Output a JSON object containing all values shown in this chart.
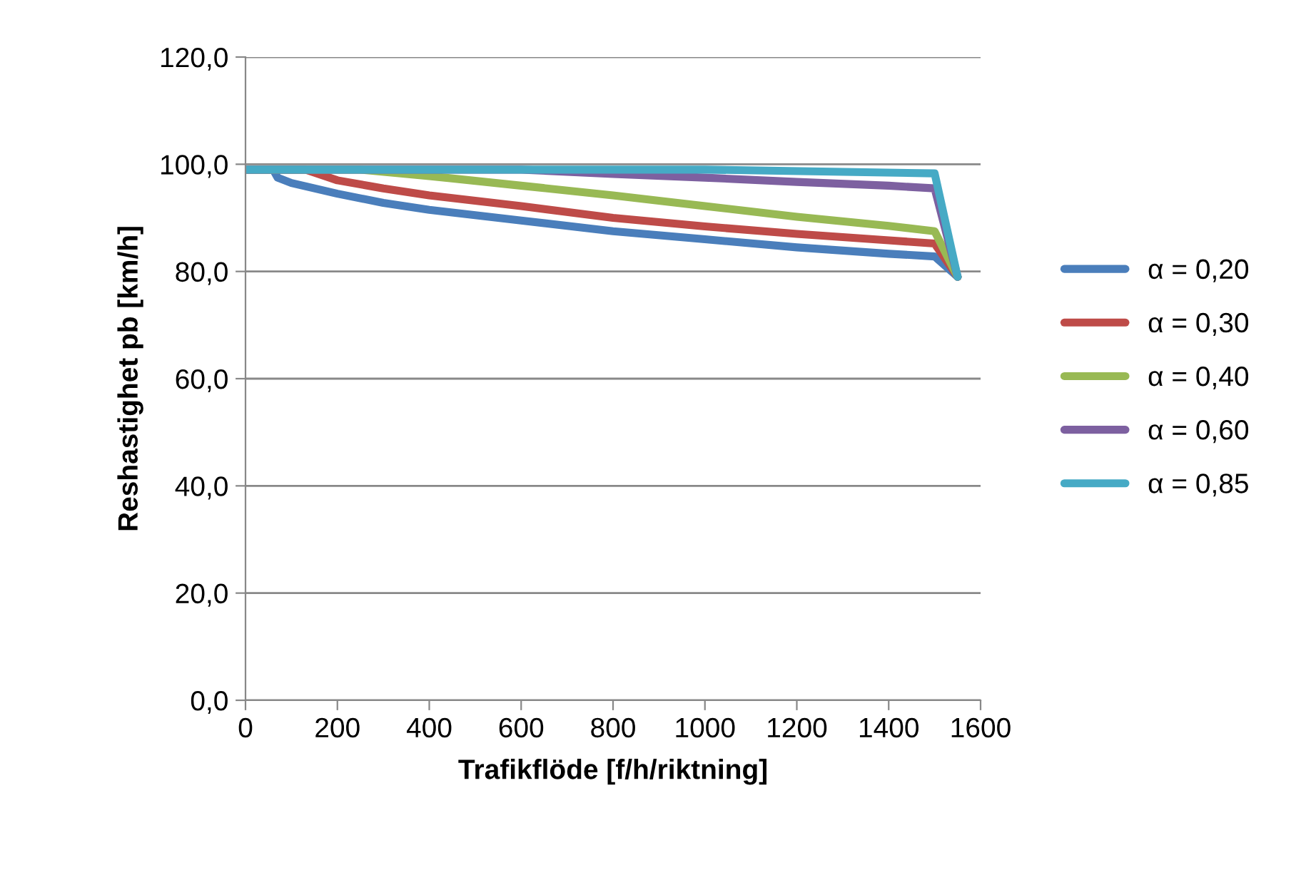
{
  "chart_data": {
    "type": "line",
    "xlabel": "Trafikflöde [f/h/riktning]",
    "ylabel": "Reshastighet pb [km/h]",
    "xlim": [
      0,
      1600
    ],
    "xticks": [
      0,
      200,
      400,
      600,
      800,
      1000,
      1200,
      1400,
      1600
    ],
    "ylim": [
      0,
      120
    ],
    "yticks": [
      {
        "value": 0,
        "label": "0,0"
      },
      {
        "value": 20,
        "label": "20,0"
      },
      {
        "value": 40,
        "label": "40,0"
      },
      {
        "value": 60,
        "label": "60,0"
      },
      {
        "value": 80,
        "label": "80,0"
      },
      {
        "value": 100,
        "label": "100,0"
      },
      {
        "value": 120,
        "label": "120,0"
      }
    ],
    "grid": "y",
    "legend": "right",
    "marker": "none",
    "line_style": "solid",
    "series": [
      {
        "name": "α = 0,20",
        "color": "#4a7ebb",
        "x": [
          0,
          60,
          70,
          100,
          200,
          300,
          400,
          600,
          800,
          1000,
          1200,
          1400,
          1500,
          1550
        ],
        "values": [
          99,
          99,
          97.5,
          96.5,
          94.5,
          92.8,
          91.5,
          89.5,
          87.5,
          86,
          84.5,
          83.3,
          82.8,
          79
        ]
      },
      {
        "name": "α = 0,30",
        "color": "#be4b48",
        "x": [
          0,
          130,
          200,
          300,
          400,
          600,
          800,
          1000,
          1200,
          1400,
          1500,
          1550
        ],
        "values": [
          99,
          99,
          97,
          95.5,
          94.2,
          92.2,
          90,
          88.4,
          87,
          85.8,
          85.2,
          79
        ]
      },
      {
        "name": "α = 0,40",
        "color": "#98b954",
        "x": [
          0,
          250,
          400,
          600,
          800,
          1000,
          1200,
          1400,
          1500,
          1550
        ],
        "values": [
          99,
          99,
          97.8,
          96,
          94.2,
          92.2,
          90.2,
          88.5,
          87.5,
          79
        ]
      },
      {
        "name": "α = 0,60",
        "color": "#7d60a0",
        "x": [
          0,
          600,
          800,
          1000,
          1200,
          1400,
          1500,
          1550
        ],
        "values": [
          99,
          99,
          98.2,
          97.5,
          96.7,
          96,
          95.5,
          79
        ]
      },
      {
        "name": "α = 0,85",
        "color": "#46aac5",
        "x": [
          0,
          1000,
          1500,
          1550
        ],
        "values": [
          99,
          99,
          98.3,
          79
        ]
      }
    ]
  }
}
